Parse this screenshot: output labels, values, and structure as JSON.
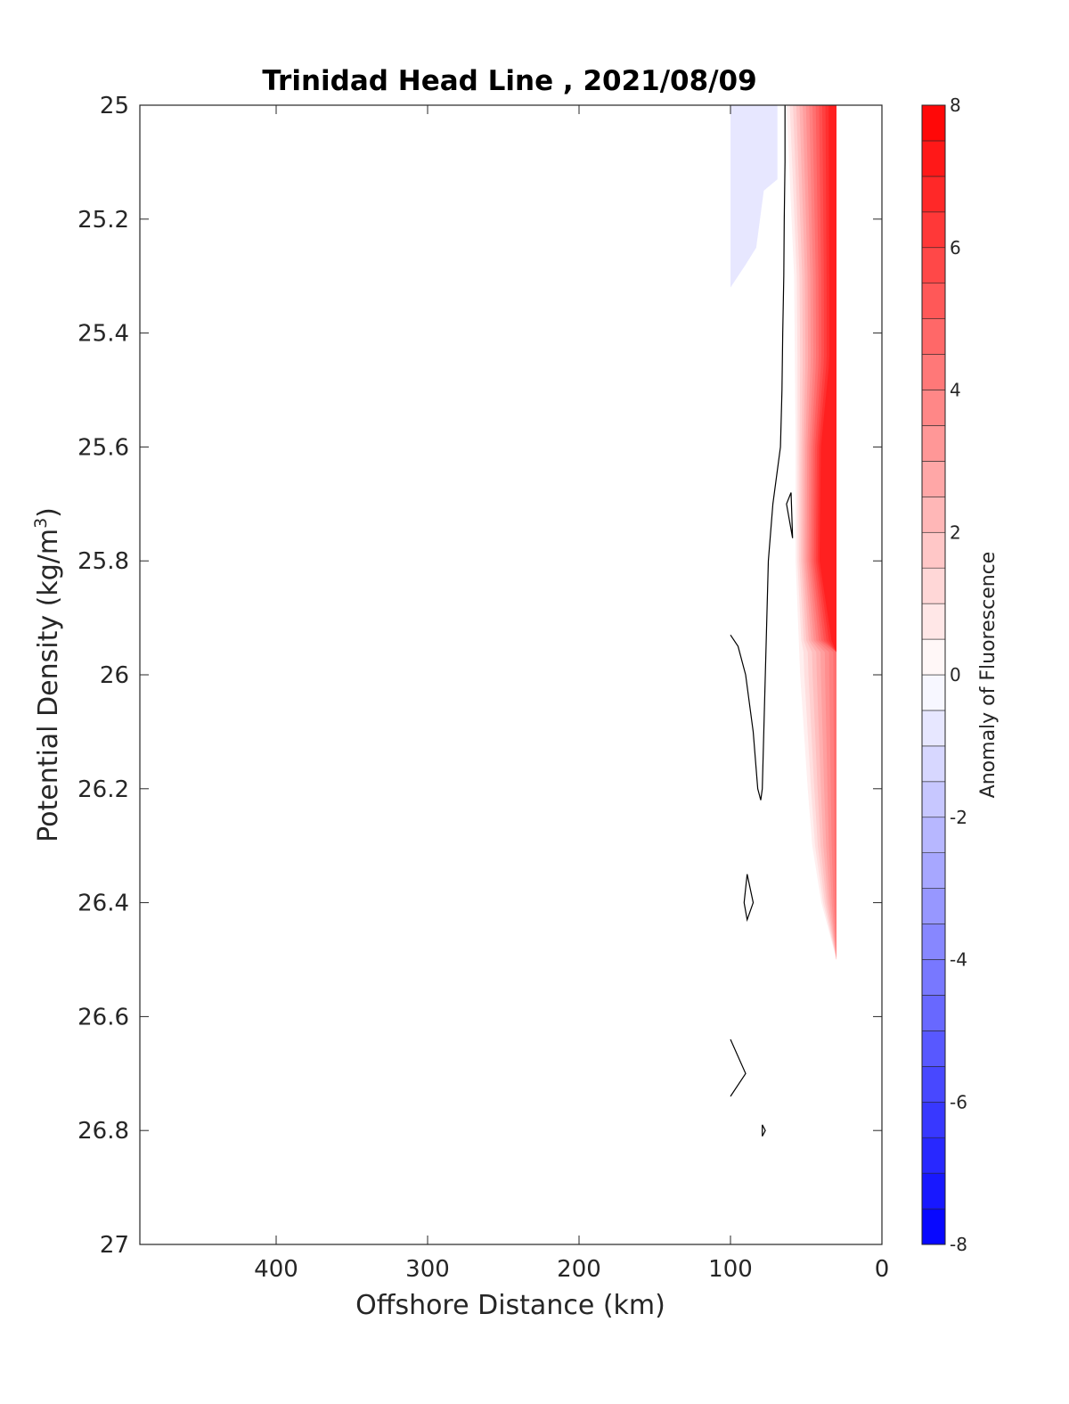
{
  "chart_data": {
    "type": "heatmap",
    "title": "Trinidad Head Line , 2021/08/09",
    "xlabel": "Offshore Distance (km)",
    "ylabel": "Potential Density (kg/m",
    "ylabel_sup": "3",
    "ylabel_close": ")",
    "xlim": [
      490,
      0
    ],
    "ylim": [
      25,
      27
    ],
    "x_ticks": [
      400,
      300,
      200,
      100,
      0
    ],
    "y_ticks": [
      25,
      25.2,
      25.4,
      25.6,
      25.8,
      26,
      26.2,
      26.4,
      26.6,
      26.8,
      27
    ],
    "x_tick_labels": [
      "400",
      "300",
      "200",
      "100",
      "0"
    ],
    "y_tick_labels": [
      "25",
      "25.2",
      "25.4",
      "25.6",
      "25.8",
      "26",
      "26.2",
      "26.4",
      "26.6",
      "26.8",
      "27"
    ],
    "colorbar": {
      "label": "Anomaly of Fluorescence",
      "range": [
        -8,
        8
      ],
      "step": 0.5,
      "ticks": [
        8,
        6,
        4,
        2,
        0,
        -2,
        -4,
        -6,
        -8
      ],
      "tick_labels": [
        "8",
        "6",
        "4",
        "2",
        "0",
        "-2",
        "-4",
        "-6",
        "-8"
      ],
      "colors": {
        "negative": "#0000ff",
        "zero": "#ffffff",
        "positive": "#ff0000"
      }
    },
    "red_region": {
      "inner_x": 30,
      "outer_x": [
        [
          25,
          63
        ],
        [
          25.3,
          58
        ],
        [
          25.6,
          57
        ],
        [
          25.8,
          57
        ],
        [
          26.0,
          54
        ],
        [
          26.2,
          49
        ],
        [
          26.3,
          46
        ],
        [
          26.4,
          40
        ],
        [
          26.5,
          30
        ]
      ],
      "core_level": 7.5,
      "core_x": [
        [
          25,
          33
        ],
        [
          25.3,
          33
        ],
        [
          25.45,
          33
        ],
        [
          25.6,
          39
        ],
        [
          25.8,
          40
        ],
        [
          25.95,
          31
        ]
      ],
      "edge_level": 0.5
    },
    "blue_region": {
      "level": -0.75,
      "polygon": [
        [
          100,
          25
        ],
        [
          69,
          25
        ],
        [
          69,
          25.13
        ],
        [
          78,
          25.15
        ],
        [
          83,
          25.25
        ],
        [
          90,
          25.28
        ],
        [
          100,
          25.32
        ]
      ]
    },
    "contours": [
      {
        "level": 0,
        "points": [
          [
            64,
            25
          ],
          [
            64,
            25.1
          ],
          [
            64.5,
            25.2
          ],
          [
            64.8,
            25.3
          ],
          [
            65.5,
            25.4
          ],
          [
            66,
            25.5
          ],
          [
            67,
            25.6
          ],
          [
            72,
            25.7
          ],
          [
            75,
            25.8
          ],
          [
            76,
            25.9
          ],
          [
            77,
            26.0
          ],
          [
            78,
            26.1
          ],
          [
            79,
            26.2
          ],
          [
            80,
            26.22
          ],
          [
            82,
            26.2
          ],
          [
            85,
            26.1
          ],
          [
            90,
            26.0
          ],
          [
            95,
            25.95
          ],
          [
            100,
            25.93
          ]
        ]
      },
      {
        "level": 0,
        "points": [
          [
            60,
            25.68
          ],
          [
            63,
            25.7
          ],
          [
            59,
            25.76
          ],
          [
            60,
            25.68
          ]
        ]
      },
      {
        "level": 0,
        "points": [
          [
            89,
            26.35
          ],
          [
            85,
            26.4
          ],
          [
            89,
            26.43
          ],
          [
            91,
            26.4
          ],
          [
            89,
            26.35
          ]
        ]
      },
      {
        "level": 0,
        "points": [
          [
            100,
            26.64
          ],
          [
            90,
            26.7
          ],
          [
            100,
            26.74
          ]
        ]
      },
      {
        "level": 0,
        "points": [
          [
            79,
            26.79
          ],
          [
            77,
            26.8
          ],
          [
            79,
            26.81
          ],
          [
            79,
            26.79
          ]
        ]
      }
    ]
  }
}
